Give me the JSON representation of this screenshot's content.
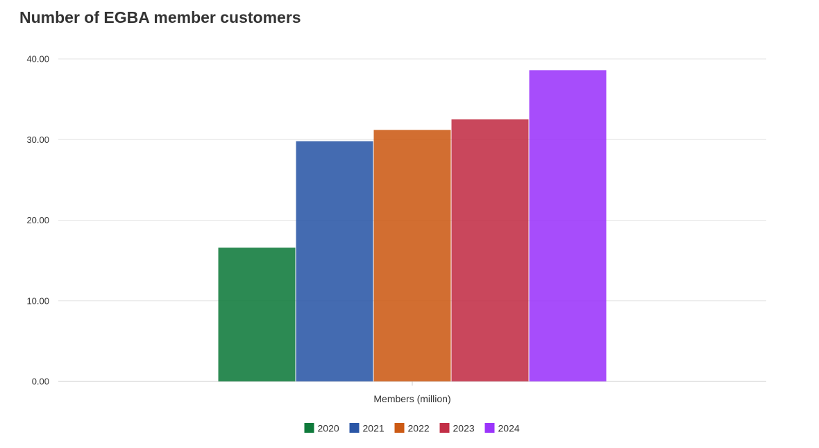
{
  "chart_data": {
    "type": "bar",
    "title": "Number of EGBA member customers",
    "xlabel": "",
    "ylabel": "",
    "categories": [
      "Members (million)"
    ],
    "ylim": [
      0,
      40
    ],
    "yticks": [
      "0.00",
      "10.00",
      "20.00",
      "30.00",
      "40.00"
    ],
    "grid": true,
    "legend_position": "bottom-center",
    "series": [
      {
        "name": "2020",
        "values": [
          16.6
        ],
        "color": "#0f7a3b"
      },
      {
        "name": "2021",
        "values": [
          29.8
        ],
        "color": "#2a56a6"
      },
      {
        "name": "2022",
        "values": [
          31.2
        ],
        "color": "#cc5a14"
      },
      {
        "name": "2023",
        "values": [
          32.5
        ],
        "color": "#c22e46"
      },
      {
        "name": "2024",
        "values": [
          38.6
        ],
        "color": "#9b34fb"
      }
    ]
  }
}
